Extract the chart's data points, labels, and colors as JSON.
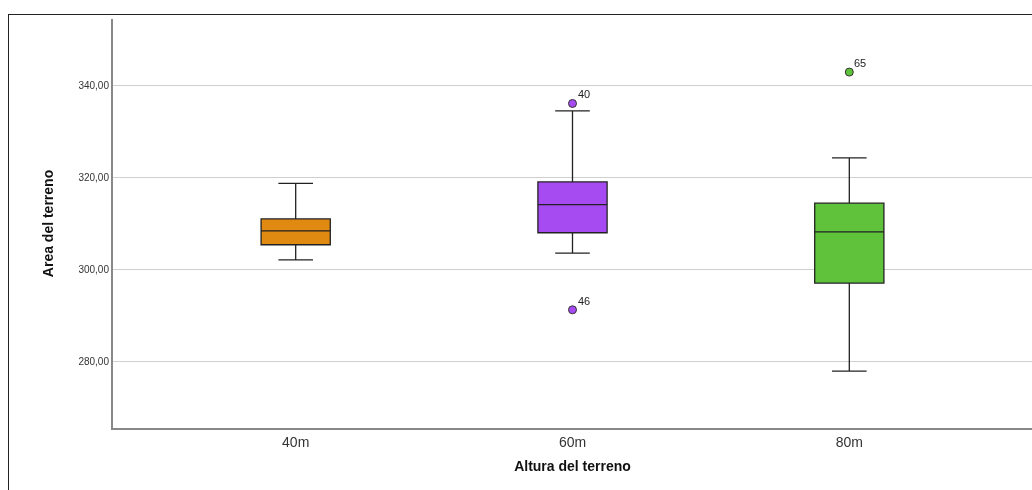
{
  "chart_data": {
    "type": "box",
    "xlabel": "Altura del terreno",
    "ylabel": "Area del terreno",
    "categories": [
      "40m",
      "60m",
      "80m"
    ],
    "colors": [
      "#e08a12",
      "#a64af2",
      "#5fc23a"
    ],
    "boxes": [
      {
        "low": 302.1,
        "q1": 305.4,
        "median": 308.4,
        "q3": 311.0,
        "high": 318.7
      },
      {
        "low": 303.6,
        "q1": 308.0,
        "median": 314.1,
        "q3": 319.0,
        "high": 334.4,
        "outliers": [
          336.0,
          291.3
        ]
      },
      {
        "low": 278.0,
        "q1": 297.1,
        "median": 308.2,
        "q3": 314.4,
        "high": 324.2,
        "outliers": [
          342.8
        ]
      }
    ],
    "ylim": [
      265.7,
      354.3
    ],
    "yticks": [
      {
        "value": 280,
        "label": "280,00"
      },
      {
        "value": 300,
        "label": "300,00"
      },
      {
        "value": 320,
        "label": "320,00"
      },
      {
        "value": 340,
        "label": "340,00"
      }
    ],
    "grid": "y",
    "annotations": [
      "40",
      "46",
      "65"
    ]
  }
}
